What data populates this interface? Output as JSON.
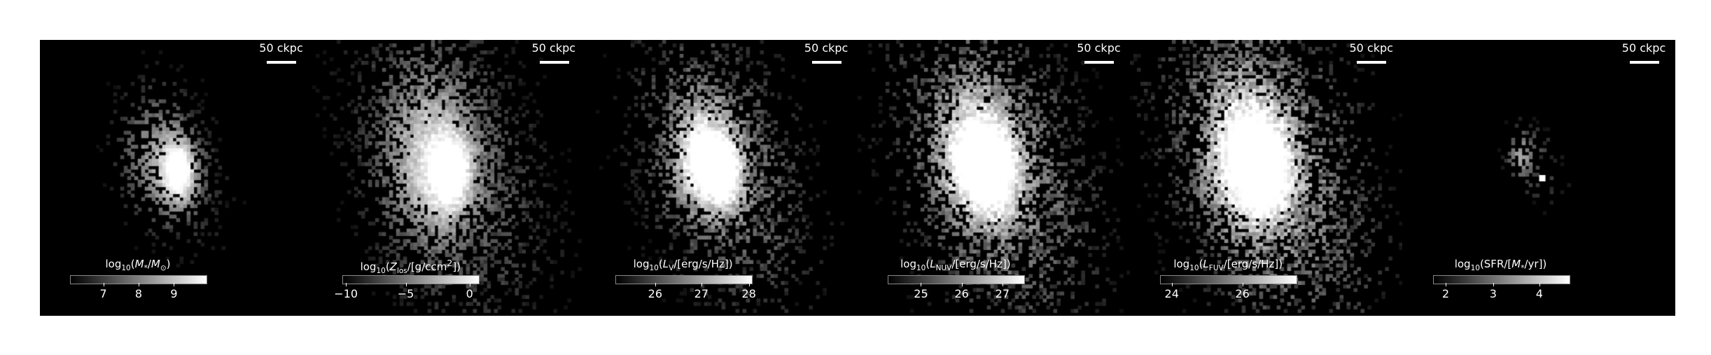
{
  "panels": [
    {
      "scalebar": "50 ckpc",
      "colorbar_label_html": "log<sub>10</sub>(<i>M</i><sub>*</sub>/<i>M</i><sub>⊙</sub>)",
      "ticks": [
        {
          "label": "7",
          "frac": 0.24
        },
        {
          "label": "8",
          "frac": 0.5
        },
        {
          "label": "9",
          "frac": 0.76
        }
      ],
      "map": {
        "blobs": [
          [
            0.41,
            0.43,
            0.08,
            0.35
          ],
          [
            0.51,
            0.48,
            0.045,
            0.95
          ]
        ],
        "spread": 0.09,
        "density": 0.35,
        "bright": 0.25,
        "hotspot": [
          0.51,
          0.49
        ]
      }
    },
    {
      "scalebar": "50 ckpc",
      "colorbar_label_html": "log<sub>10</sub>(<i>Z</i><sub>los</sub>/[g/ccm<sup>2</sup>])",
      "ticks": [
        {
          "label": "−10",
          "frac": 0.02
        },
        {
          "label": "−5",
          "frac": 0.46
        },
        {
          "label": "0",
          "frac": 0.93
        }
      ],
      "map": {
        "blobs": [
          [
            0.43,
            0.44,
            0.11,
            0.55
          ],
          [
            0.51,
            0.48,
            0.05,
            0.8
          ]
        ],
        "spread": 0.17,
        "density": 0.6,
        "bright": 0.35,
        "hotspot": [
          0.51,
          0.49
        ]
      }
    },
    {
      "scalebar": "50 ckpc",
      "colorbar_label_html": "log<sub>10</sub>(<i>L</i><sub>V</sub>/[erg/s/Hz])",
      "ticks": [
        {
          "label": "26",
          "frac": 0.29
        },
        {
          "label": "27",
          "frac": 0.63
        },
        {
          "label": "28",
          "frac": 0.98
        }
      ],
      "map": {
        "blobs": [
          [
            0.42,
            0.42,
            0.07,
            0.8
          ],
          [
            0.51,
            0.48,
            0.05,
            0.9
          ]
        ],
        "spread": 0.15,
        "density": 0.55,
        "bright": 0.45,
        "hotspot": null
      }
    },
    {
      "scalebar": "50 ckpc",
      "colorbar_label_html": "log<sub>10</sub>(<i>L</i><sub>NUV</sub>/[erg/s/Hz])",
      "ticks": [
        {
          "label": "25",
          "frac": 0.24
        },
        {
          "label": "26",
          "frac": 0.54
        },
        {
          "label": "27",
          "frac": 0.84
        }
      ],
      "map": {
        "blobs": [
          [
            0.42,
            0.42,
            0.08,
            0.85
          ],
          [
            0.51,
            0.48,
            0.06,
            0.8
          ]
        ],
        "spread": 0.17,
        "density": 0.65,
        "bright": 0.55,
        "hotspot": null
      }
    },
    {
      "scalebar": "50 ckpc",
      "colorbar_label_html": "log<sub>10</sub>(<i>L</i><sub>FUV</sub>/[erg/s/Hz])",
      "ticks": [
        {
          "label": "24",
          "frac": 0.08
        },
        {
          "label": "26",
          "frac": 0.6
        }
      ],
      "map": {
        "blobs": [
          [
            0.42,
            0.42,
            0.09,
            0.85
          ],
          [
            0.51,
            0.48,
            0.06,
            0.8
          ]
        ],
        "spread": 0.18,
        "density": 0.65,
        "bright": 0.6,
        "hotspot": null
      }
    },
    {
      "scalebar": "50 ckpc",
      "colorbar_label_html": "log<sub>10</sub>(SFR/[<i>M</i><sub>*</sub>/yr])",
      "ticks": [
        {
          "label": "2",
          "frac": 0.09
        },
        {
          "label": "3",
          "frac": 0.44
        },
        {
          "label": "4",
          "frac": 0.78
        }
      ],
      "map": {
        "blobs": [
          [
            0.43,
            0.42,
            0.03,
            0.5
          ]
        ],
        "spread": 0.05,
        "density": 0.25,
        "bright": 0.2,
        "hotspot": [
          0.51,
          0.5
        ]
      }
    }
  ]
}
